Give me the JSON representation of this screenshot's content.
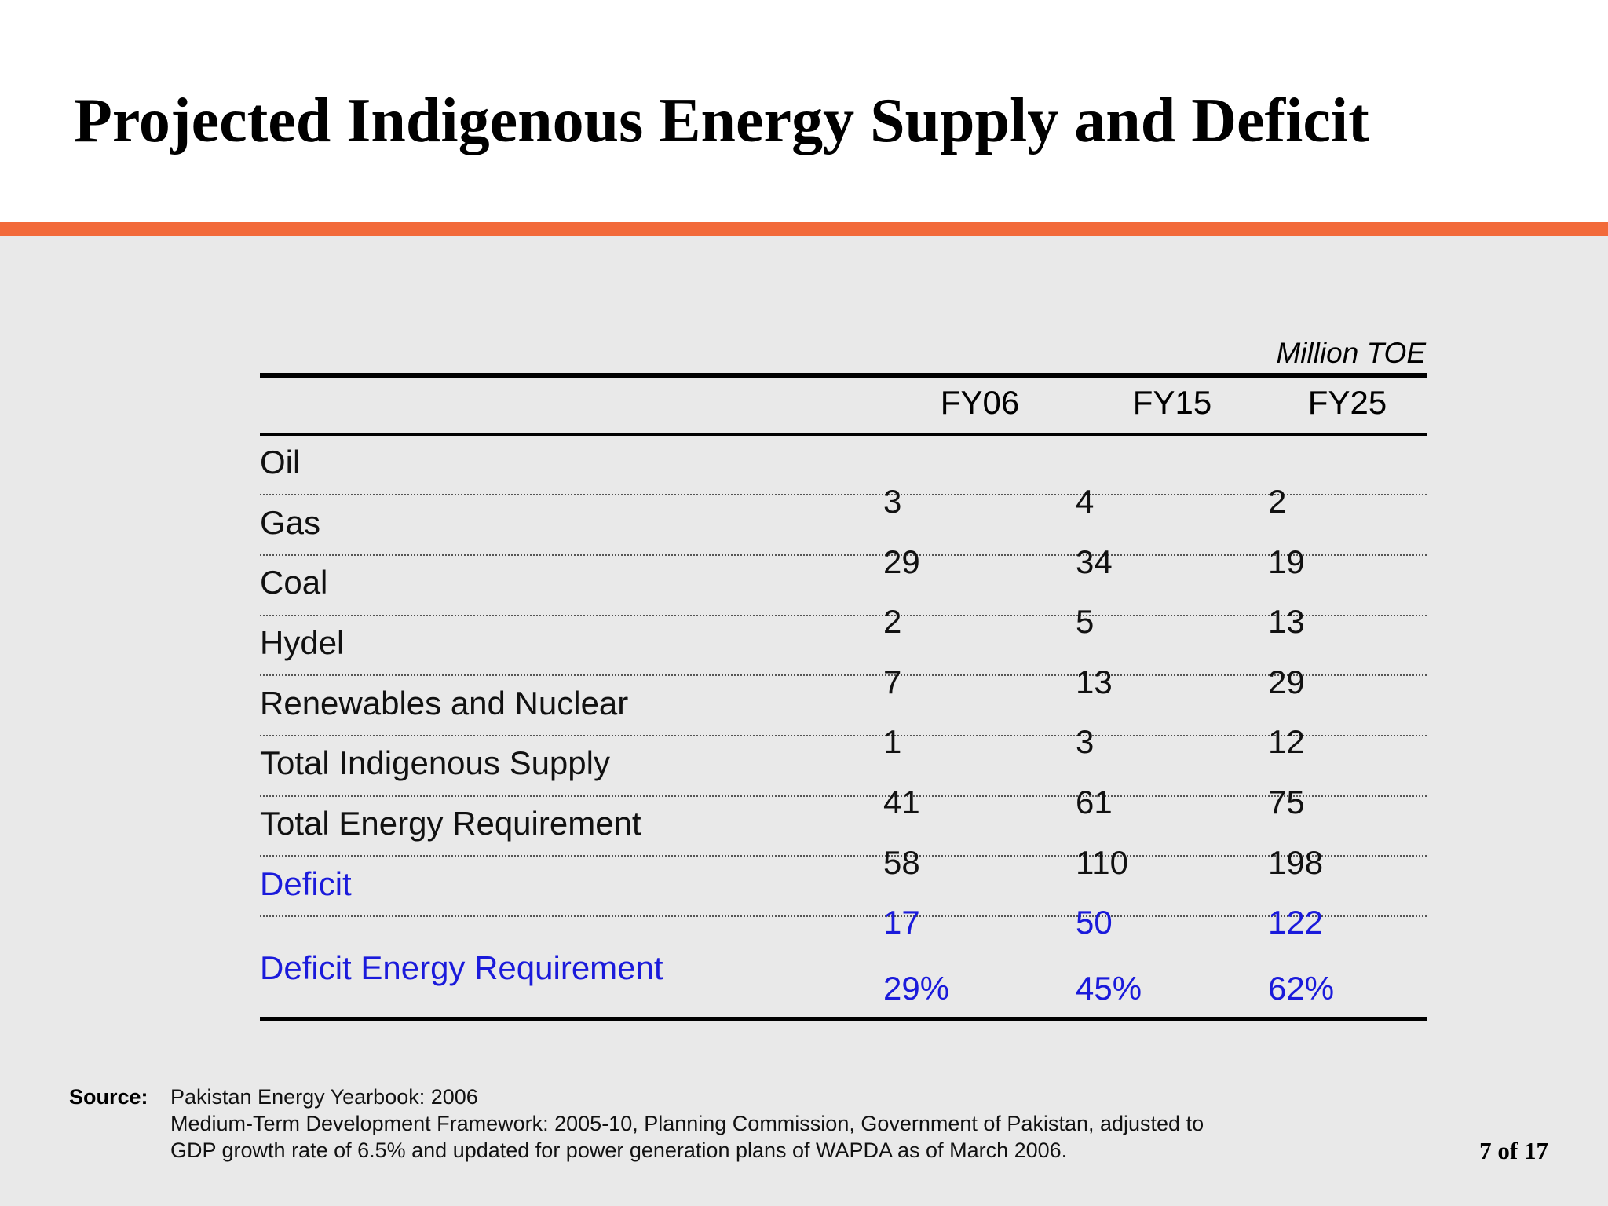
{
  "slide": {
    "title": "Projected Indigenous Energy Supply and Deficit",
    "accent_color": "#f26a3a",
    "page_number": "7 of 17"
  },
  "table": {
    "unit": "Million TOE",
    "columns": [
      "FY06",
      "FY15",
      "FY25"
    ],
    "rows": [
      {
        "label": "Oil",
        "values": [
          "3",
          "4",
          "2"
        ],
        "highlight": false
      },
      {
        "label": "Gas",
        "values": [
          "29",
          "34",
          "19"
        ],
        "highlight": false
      },
      {
        "label": "Coal",
        "values": [
          "2",
          "5",
          "13"
        ],
        "highlight": false
      },
      {
        "label": "Hydel",
        "values": [
          "7",
          "13",
          "29"
        ],
        "highlight": false
      },
      {
        "label": "Renewables and Nuclear",
        "values": [
          "1",
          "3",
          "12"
        ],
        "highlight": false
      },
      {
        "label": "Total Indigenous Supply",
        "values": [
          "41",
          "61",
          "75"
        ],
        "highlight": false
      },
      {
        "label": "Total Energy Requirement",
        "values": [
          "58",
          "110",
          "198"
        ],
        "highlight": false
      },
      {
        "label": "Deficit",
        "values": [
          "17",
          "50",
          "122"
        ],
        "highlight": true
      },
      {
        "label": "Deficit Energy Requirement",
        "values": [
          "29%",
          "45%",
          "62%"
        ],
        "highlight": true
      }
    ],
    "highlight_color": "#1a1adb"
  },
  "source": {
    "label": "Source:",
    "lines": [
      "Pakistan Energy Yearbook: 2006",
      "Medium-Term Development Framework: 2005-10, Planning Commission, Government of Pakistan, adjusted to",
      "GDP growth rate of 6.5% and updated for power generation plans of WAPDA as of March 2006."
    ]
  }
}
